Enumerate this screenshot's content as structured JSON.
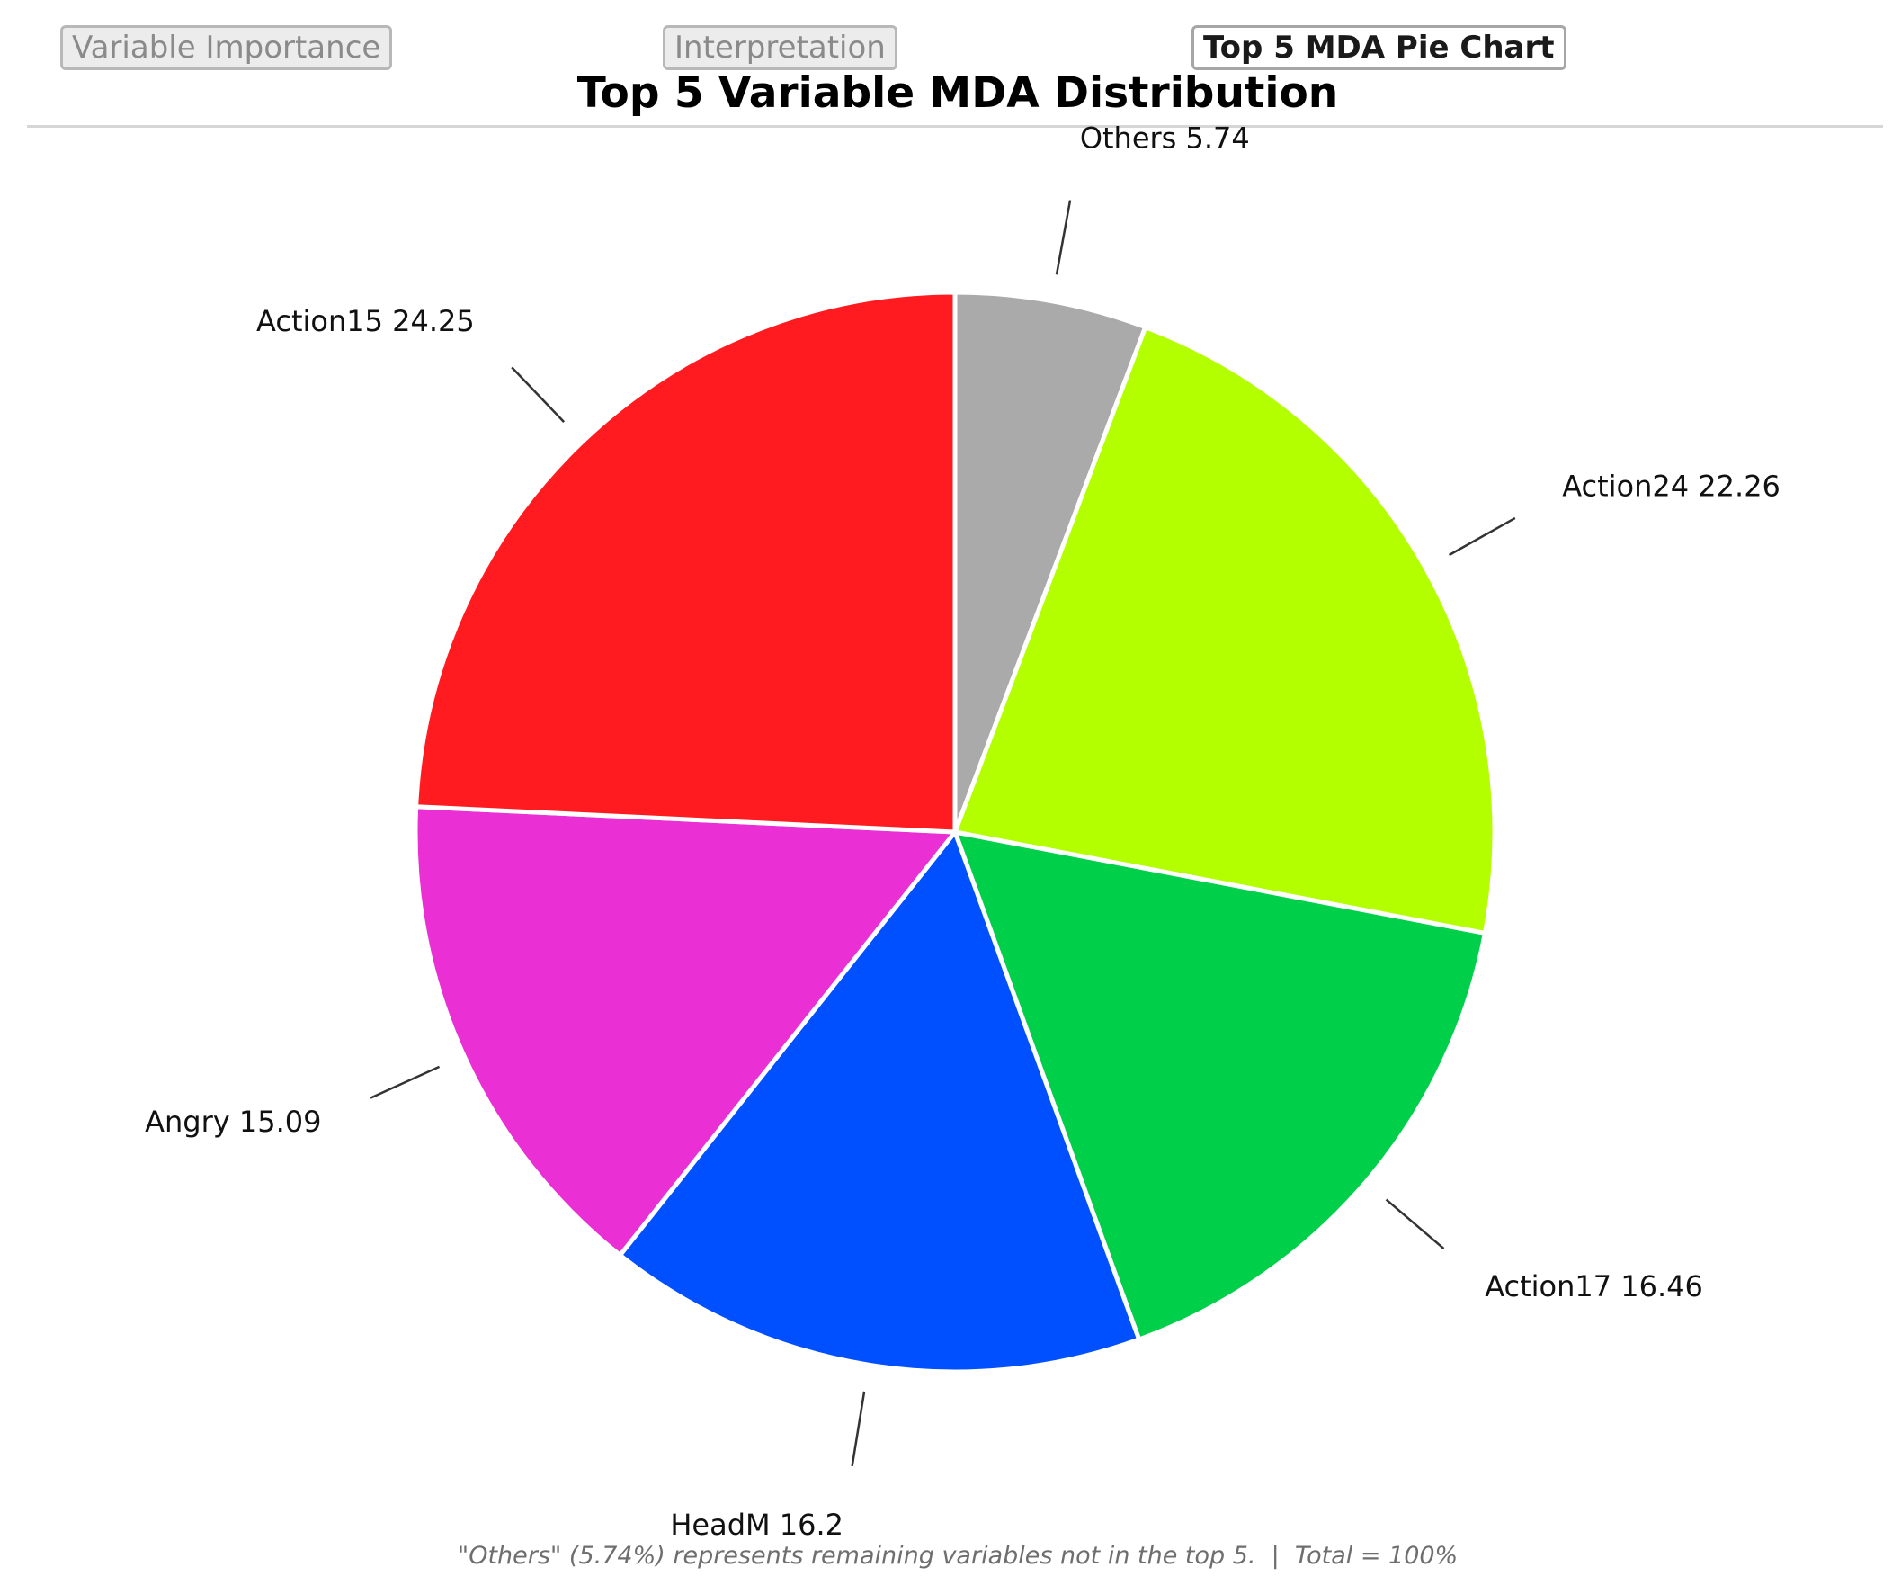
{
  "tabs": [
    {
      "label": "Variable Importance",
      "active": false
    },
    {
      "label": "Interpretation",
      "active": false
    },
    {
      "label": "Top 5 MDA Pie Chart",
      "active": true
    }
  ],
  "chart_data": {
    "type": "pie",
    "title": "Top 5 Variable MDA Distribution",
    "start_angle_deg": 90,
    "direction": "clockwise",
    "slices": [
      {
        "label": "Others",
        "value": 5.74,
        "display": "Others  5.74",
        "color": "#aaaaaa"
      },
      {
        "label": "Action24",
        "value": 22.26,
        "display": "Action24  22.26",
        "color": "#b3ff00"
      },
      {
        "label": "Action17",
        "value": 16.46,
        "display": "Action17  16.46",
        "color": "#00cf4a"
      },
      {
        "label": "HeadM",
        "value": 16.2,
        "display": "HeadM  16.2",
        "color": "#0050ff"
      },
      {
        "label": "Angry",
        "value": 15.09,
        "display": "Angry  15.09",
        "color": "#ea2fd4"
      },
      {
        "label": "Action15",
        "value": 24.25,
        "display": "Action15  24.25",
        "color": "#ff1b1f"
      }
    ]
  },
  "footnote": "\"Others\" (5.74%) represents remaining variables not in the top 5.  |  Total = 100%"
}
